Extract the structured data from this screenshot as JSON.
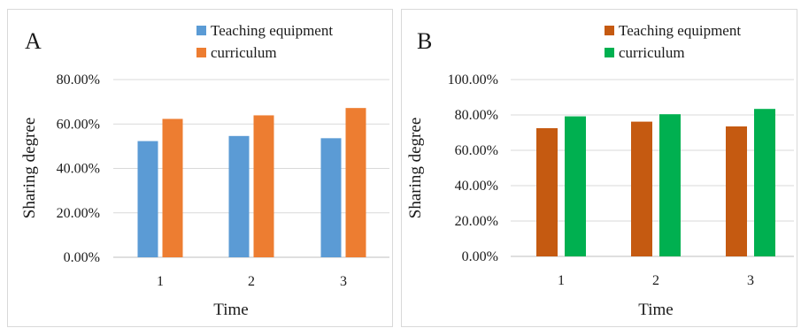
{
  "chart_data": [
    {
      "panel": "A",
      "type": "bar",
      "categories": [
        "1",
        "2",
        "3"
      ],
      "series": [
        {
          "name": "Teaching equipment",
          "values": [
            52.3,
            54.6,
            53.6
          ],
          "color": "#5B9BD5"
        },
        {
          "name": "curriculum",
          "values": [
            62.3,
            63.9,
            67.2
          ],
          "color": "#ED7D31"
        }
      ],
      "xlabel": "Time",
      "ylabel": "Sharing degree",
      "ylim": [
        0,
        80
      ],
      "yticks": [
        "0.00%",
        "20.00%",
        "40.00%",
        "60.00%",
        "80.00%"
      ],
      "grid": true,
      "legend": "top-right"
    },
    {
      "panel": "B",
      "type": "bar",
      "categories": [
        "1",
        "2",
        "3"
      ],
      "series": [
        {
          "name": "Teaching equipment",
          "values": [
            72.5,
            76.2,
            73.5
          ],
          "color": "#C55A11"
        },
        {
          "name": "curriculum",
          "values": [
            79.2,
            80.4,
            83.4
          ],
          "color": "#00B050"
        }
      ],
      "xlabel": "Time",
      "ylabel": "Sharing degree",
      "ylim": [
        0,
        100
      ],
      "yticks": [
        "0.00%",
        "20.00%",
        "40.00%",
        "60.00%",
        "80.00%",
        "100.00%"
      ],
      "grid": true,
      "legend": "top-right"
    }
  ]
}
